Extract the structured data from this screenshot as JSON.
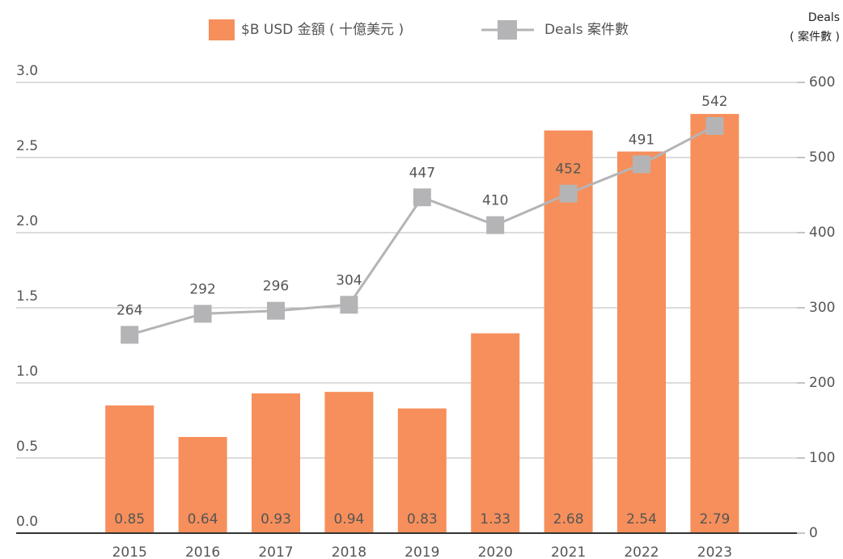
{
  "chart_data": {
    "type": "bar",
    "categories": [
      "2015",
      "2016",
      "2017",
      "2018",
      "2019",
      "2020",
      "2021",
      "2022",
      "2023"
    ],
    "series": [
      {
        "name": "$B USD 金額 ( 十億美元 )",
        "color": "#f68f5b",
        "values": [
          0.85,
          0.64,
          0.93,
          0.94,
          0.83,
          1.33,
          2.68,
          2.54,
          2.79
        ]
      },
      {
        "name": "Deals 案件數",
        "color": "#b4b4b6",
        "type": "line",
        "axis": "y2",
        "values": [
          264,
          292,
          296,
          304,
          447,
          410,
          452,
          491,
          542
        ]
      }
    ],
    "ylim": [
      0,
      3.0
    ],
    "yticks": [
      {
        "value": 0,
        "label": "0.0"
      },
      0.5,
      {
        "value": 1,
        "label": "1.0"
      },
      1.5,
      {
        "value": 2,
        "label": "2.0"
      },
      2.5,
      {
        "value": 3,
        "label": "3.0"
      }
    ],
    "y2lim": [
      0,
      600
    ],
    "y2ticks": [
      0,
      100,
      200,
      300,
      400,
      500,
      600
    ],
    "y2label": [
      "Deals",
      "( 案件數 )"
    ],
    "grid": true,
    "legend": "top"
  }
}
